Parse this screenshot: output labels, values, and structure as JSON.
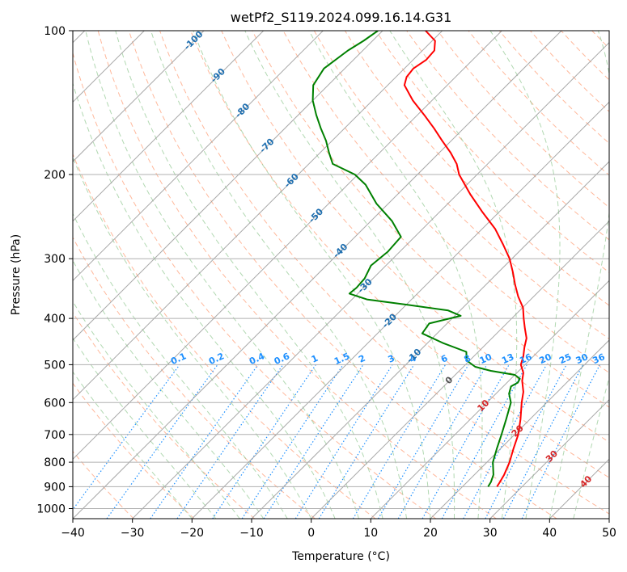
{
  "chart_data": {
    "type": "line",
    "diagram": "skew-T log-P",
    "title": "wetPf2_S119.2024.099.16.14.G31",
    "xlabel": "Temperature (°C)",
    "ylabel": "Pressure (hPa)",
    "xlim": [
      -40,
      50
    ],
    "ylim": [
      1050,
      100
    ],
    "y_scale": "log",
    "grid": true,
    "x_ticks": [
      "−40",
      "−30",
      "−20",
      "−10",
      "0",
      "10",
      "20",
      "30",
      "40",
      "50"
    ],
    "y_ticks": [
      "100",
      "200",
      "300",
      "400",
      "500",
      "600",
      "700",
      "800",
      "900",
      "1000"
    ],
    "colors": {
      "temperature": "#ff0000",
      "dewpoint": "#008000",
      "isotherm": "#999999",
      "dry_adiabat": "#ffa07a",
      "moist_adiabat": "#90c890",
      "mixing_ratio": "#1e90ff",
      "isotherm_label_cold": "#1f6fb0",
      "isotherm_label_warm": "#d62728"
    },
    "series": [
      {
        "key": "temperature",
        "p": [
          900,
          880,
          850,
          800,
          750,
          700,
          650,
          600,
          570,
          540,
          520,
          500,
          480,
          460,
          440,
          420,
          400,
          380,
          360,
          340,
          320,
          300,
          280,
          260,
          240,
          220,
          200,
          190,
          180,
          170,
          160,
          150,
          140,
          130,
          125,
          120,
          115,
          110,
          105,
          100
        ],
        "t": [
          25.8,
          25.5,
          25.0,
          23.8,
          22.2,
          20.6,
          18.4,
          15.8,
          14.3,
          12.2,
          11.1,
          9.3,
          8.3,
          7.0,
          5.8,
          3.9,
          2.0,
          0.1,
          -2.6,
          -5.1,
          -7.6,
          -10.4,
          -13.9,
          -17.8,
          -22.7,
          -27.8,
          -33.0,
          -35.2,
          -38.1,
          -41.5,
          -45.0,
          -48.9,
          -53.2,
          -57.2,
          -58.2,
          -58.5,
          -57.8,
          -58.0,
          -59.5,
          -62.8
        ]
      },
      {
        "key": "dewpoint",
        "p": [
          900,
          880,
          850,
          800,
          750,
          700,
          650,
          600,
          575,
          555,
          545,
          535,
          525,
          515,
          505,
          490,
          470,
          450,
          430,
          410,
          395,
          385,
          375,
          365,
          355,
          345,
          330,
          310,
          290,
          270,
          250,
          230,
          210,
          200,
          190,
          180,
          170,
          160,
          150,
          140,
          130,
          120,
          110,
          105,
          100
        ],
        "t": [
          24.3,
          24.0,
          23.2,
          21.0,
          19.4,
          17.8,
          16.0,
          14.0,
          12.2,
          11.3,
          11.8,
          11.5,
          10.0,
          5.3,
          2.0,
          -0.5,
          -2.0,
          -7.5,
          -12.5,
          -13.0,
          -9.0,
          -12.0,
          -19.5,
          -27.5,
          -31.4,
          -31.2,
          -31.4,
          -32.5,
          -32.0,
          -32.3,
          -36.5,
          -42.0,
          -47.0,
          -50.5,
          -56.0,
          -58.5,
          -61.0,
          -64.0,
          -67.0,
          -70.0,
          -72.5,
          -73.5,
          -72.5,
          -71.5,
          -70.8
        ]
      }
    ],
    "mixing_ratio_labels": [
      "0.1",
      "0.2",
      "0.4",
      "0.6",
      "1",
      "1.5",
      "2",
      "3",
      "4",
      "6",
      "8",
      "10",
      "13",
      "16",
      "20",
      "25",
      "30",
      "36"
    ],
    "isotherm_labels": [
      {
        "text": "-100",
        "t": -100
      },
      {
        "text": "-90",
        "t": -90
      },
      {
        "text": "-80",
        "t": -80
      },
      {
        "text": "-70",
        "t": -70
      },
      {
        "text": "-60",
        "t": -60
      },
      {
        "text": "-50",
        "t": -50
      },
      {
        "text": "-40",
        "t": -40
      },
      {
        "text": "-30",
        "t": -30
      },
      {
        "text": "-20",
        "t": -20
      },
      {
        "text": "-10",
        "t": -10
      },
      {
        "text": "0",
        "t": 0
      },
      {
        "text": "10",
        "t": 10
      },
      {
        "text": "20",
        "t": 20
      },
      {
        "text": "30",
        "t": 30
      },
      {
        "text": "40",
        "t": 40
      }
    ]
  }
}
